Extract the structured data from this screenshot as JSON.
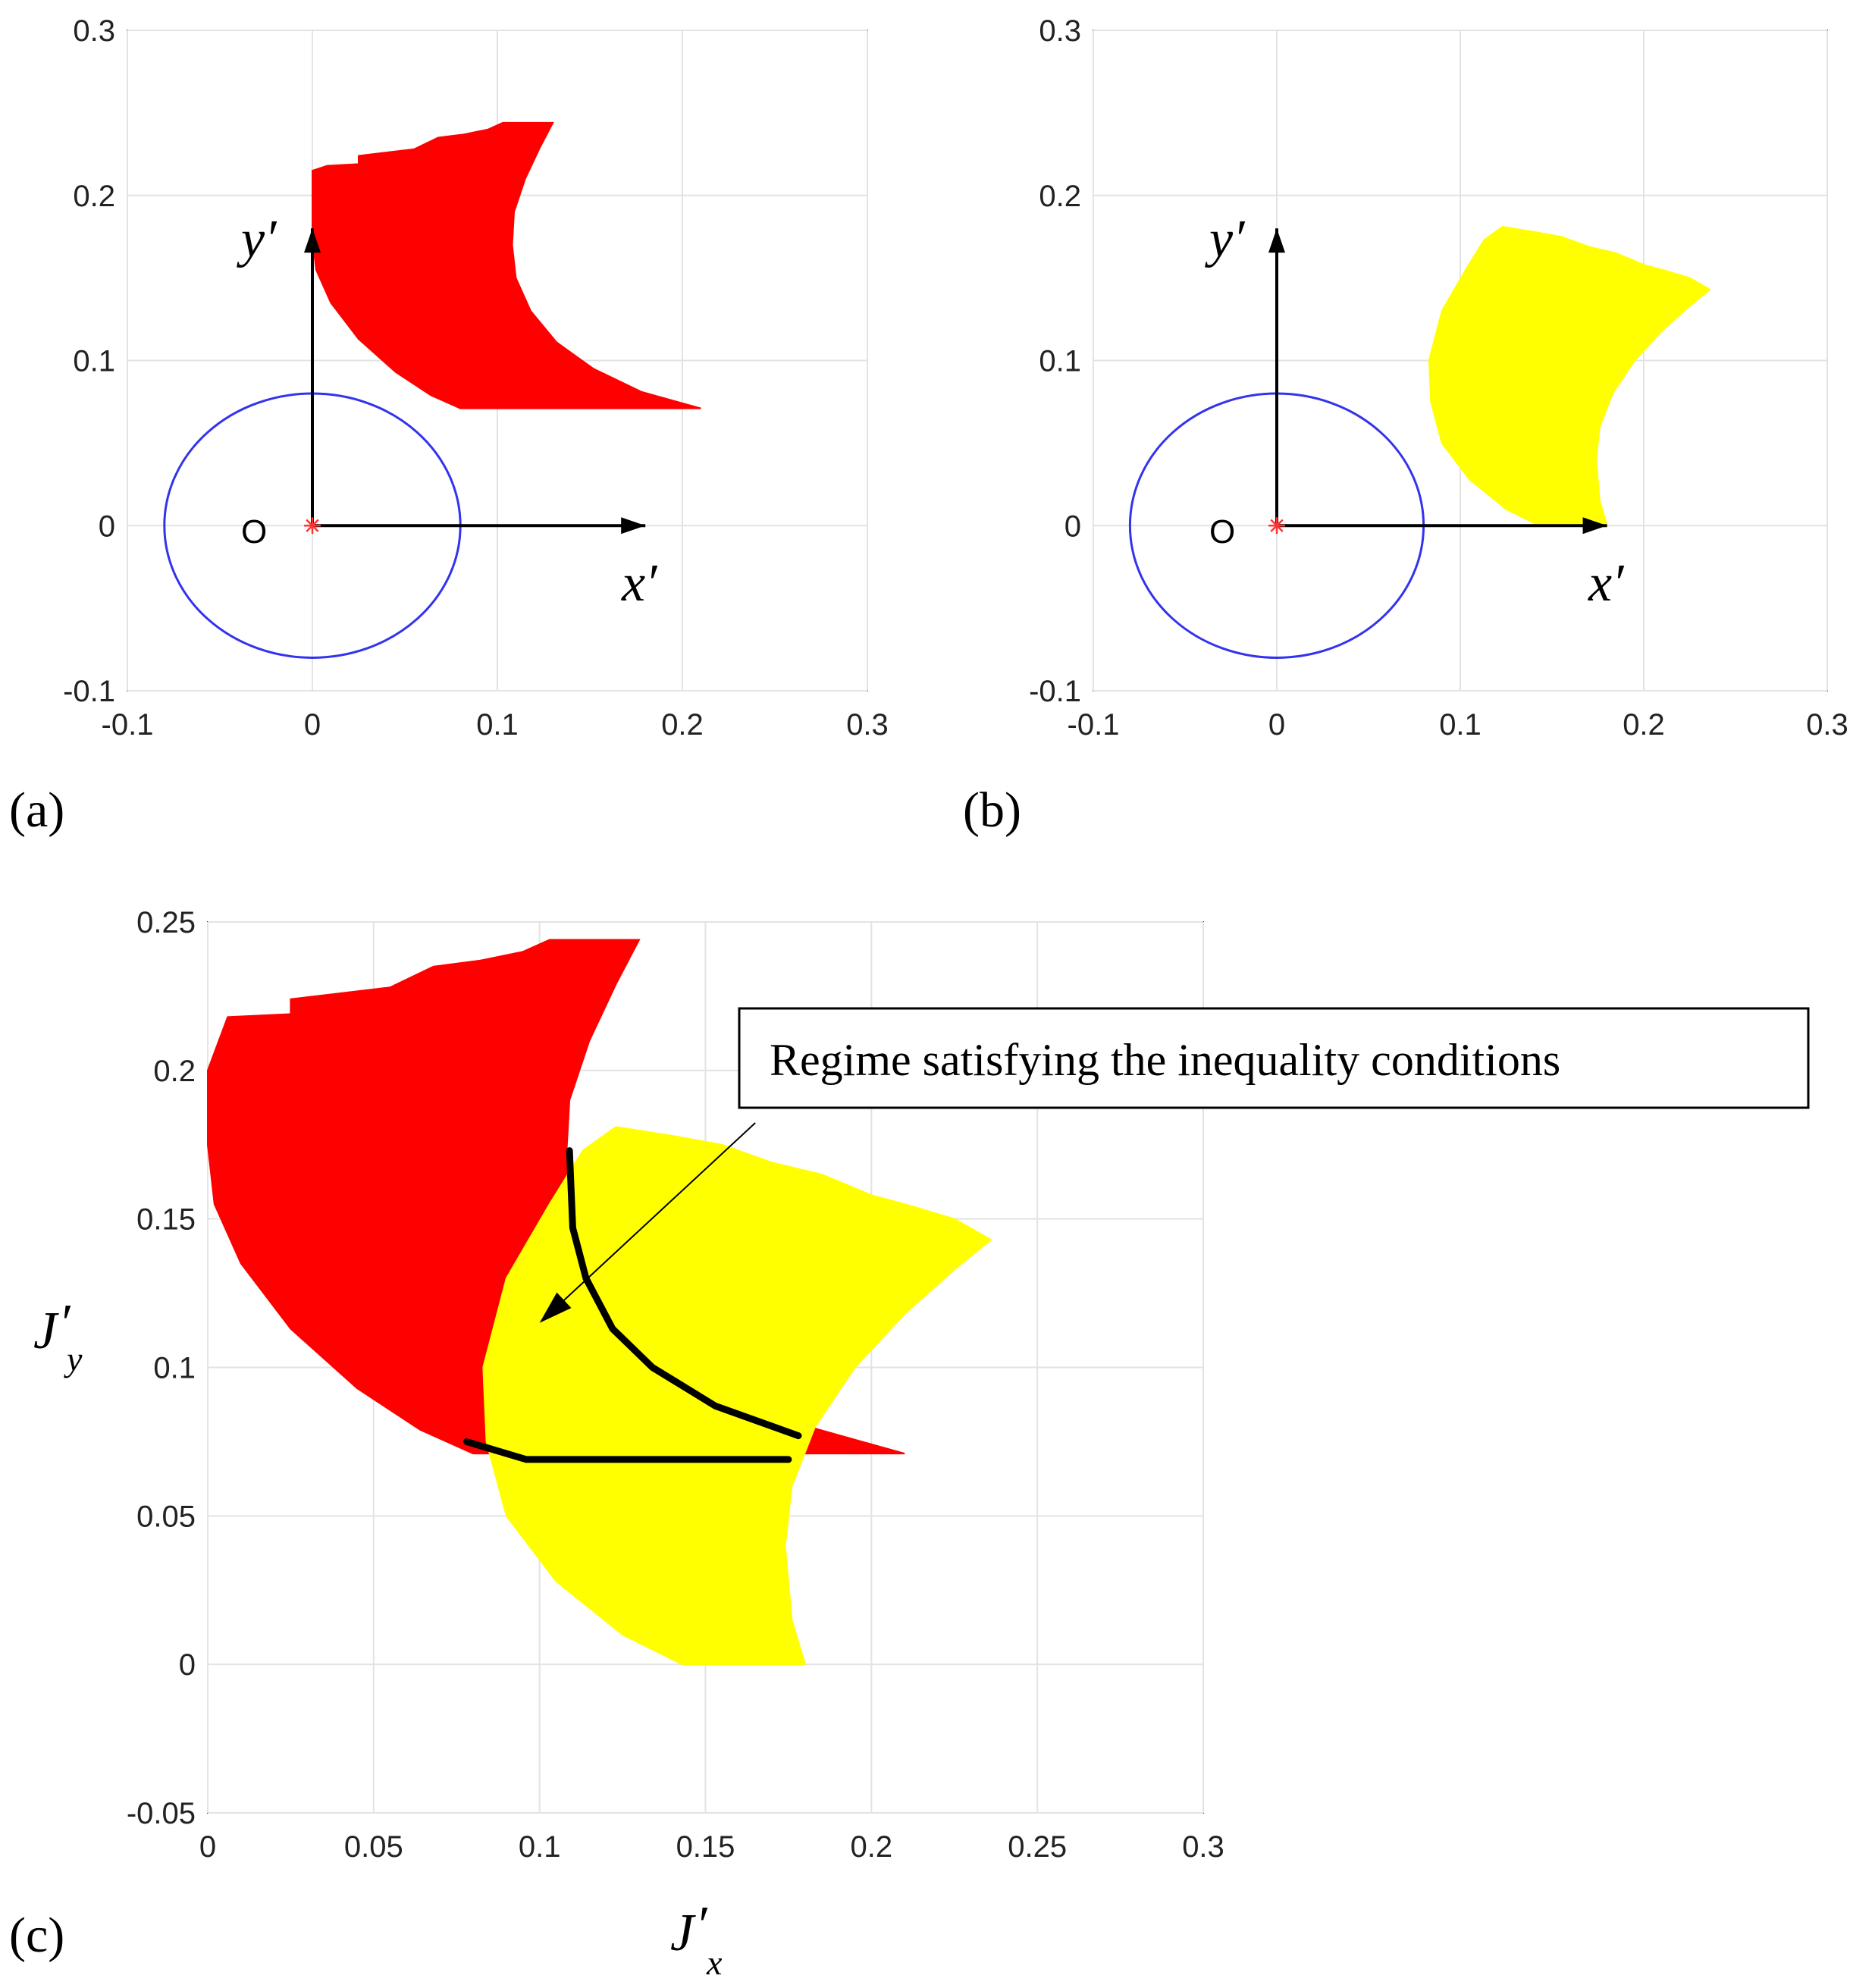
{
  "chart_data": [
    {
      "type": "area",
      "panel_label": "(a)",
      "xlim": [
        -0.1,
        0.3
      ],
      "ylim": [
        -0.1,
        0.3
      ],
      "xticks": [
        "-0.1",
        "0",
        "0.1",
        "0.2",
        "0.3"
      ],
      "yticks": [
        "-0.1",
        "0",
        "0.1",
        "0.2",
        "0.3"
      ],
      "grid": true,
      "x_axis_arrow_label": "x′",
      "y_axis_arrow_label": "y′",
      "origin_label": "O",
      "region_color": "#ff0000",
      "circle_color": "#3333ee",
      "circle": {
        "center": [
          0,
          0
        ],
        "radius": 0.08
      },
      "region": [
        [
          0.0,
          0.215
        ],
        [
          0.008,
          0.218
        ],
        [
          0.025,
          0.219
        ],
        [
          0.025,
          0.224
        ],
        [
          0.04,
          0.226
        ],
        [
          0.055,
          0.228
        ],
        [
          0.068,
          0.235
        ],
        [
          0.082,
          0.237
        ],
        [
          0.095,
          0.24
        ],
        [
          0.103,
          0.244
        ],
        [
          0.13,
          0.244
        ],
        [
          0.123,
          0.229
        ],
        [
          0.115,
          0.21
        ],
        [
          0.109,
          0.19
        ],
        [
          0.108,
          0.17
        ],
        [
          0.11,
          0.15
        ],
        [
          0.118,
          0.13
        ],
        [
          0.132,
          0.111
        ],
        [
          0.152,
          0.095
        ],
        [
          0.178,
          0.081
        ],
        [
          0.21,
          0.071
        ],
        [
          0.08,
          0.071
        ],
        [
          0.064,
          0.079
        ],
        [
          0.045,
          0.093
        ],
        [
          0.025,
          0.113
        ],
        [
          0.01,
          0.135
        ],
        [
          0.002,
          0.155
        ],
        [
          0.0,
          0.175
        ]
      ]
    },
    {
      "type": "area",
      "panel_label": "(b)",
      "xlim": [
        -0.1,
        0.3
      ],
      "ylim": [
        -0.1,
        0.3
      ],
      "xticks": [
        "-0.1",
        "0",
        "0.1",
        "0.2",
        "0.3"
      ],
      "yticks": [
        "-0.1",
        "0",
        "0.1",
        "0.2",
        "0.3"
      ],
      "grid": true,
      "x_axis_arrow_label": "x′",
      "y_axis_arrow_label": "y′",
      "origin_label": "O",
      "region_color": "#ffff00",
      "circle_color": "#3333ee",
      "circle": {
        "center": [
          0,
          0
        ],
        "radius": 0.08
      },
      "region": [
        [
          0.083,
          0.1
        ],
        [
          0.09,
          0.13
        ],
        [
          0.103,
          0.155
        ],
        [
          0.113,
          0.173
        ],
        [
          0.123,
          0.181
        ],
        [
          0.14,
          0.178
        ],
        [
          0.155,
          0.175
        ],
        [
          0.17,
          0.169
        ],
        [
          0.185,
          0.165
        ],
        [
          0.2,
          0.158
        ],
        [
          0.21,
          0.155
        ],
        [
          0.225,
          0.15
        ],
        [
          0.236,
          0.143
        ],
        [
          0.225,
          0.133
        ],
        [
          0.21,
          0.118
        ],
        [
          0.195,
          0.1
        ],
        [
          0.183,
          0.08
        ],
        [
          0.176,
          0.06
        ],
        [
          0.174,
          0.04
        ],
        [
          0.176,
          0.015
        ],
        [
          0.18,
          0.0
        ],
        [
          0.143,
          0.0
        ],
        [
          0.125,
          0.01
        ],
        [
          0.105,
          0.028
        ],
        [
          0.09,
          0.05
        ],
        [
          0.084,
          0.075
        ]
      ]
    },
    {
      "type": "area",
      "panel_label": "(c)",
      "xlabel": "J",
      "xlabel_sub": "x",
      "ylabel": "J",
      "ylabel_sub": "y",
      "xlim": [
        0,
        0.3
      ],
      "ylim": [
        -0.05,
        0.25
      ],
      "xticks": [
        "0",
        "0.05",
        "0.1",
        "0.15",
        "0.2",
        "0.25",
        "0.3"
      ],
      "yticks": [
        "-0.05",
        "0",
        "0.05",
        "0.1",
        "0.15",
        "0.2",
        "0.25"
      ],
      "grid": true,
      "series": [
        {
          "name": "red region",
          "color": "#ff0000",
          "points": [
            [
              0.0,
              0.2
            ],
            [
              0.006,
              0.218
            ],
            [
              0.025,
              0.219
            ],
            [
              0.025,
              0.224
            ],
            [
              0.04,
              0.226
            ],
            [
              0.055,
              0.228
            ],
            [
              0.068,
              0.235
            ],
            [
              0.082,
              0.237
            ],
            [
              0.095,
              0.24
            ],
            [
              0.103,
              0.244
            ],
            [
              0.13,
              0.244
            ],
            [
              0.123,
              0.229
            ],
            [
              0.115,
              0.21
            ],
            [
              0.109,
              0.19
            ],
            [
              0.108,
              0.17
            ],
            [
              0.11,
              0.15
            ],
            [
              0.118,
              0.13
            ],
            [
              0.132,
              0.111
            ],
            [
              0.152,
              0.095
            ],
            [
              0.178,
              0.081
            ],
            [
              0.21,
              0.071
            ],
            [
              0.08,
              0.071
            ],
            [
              0.064,
              0.079
            ],
            [
              0.045,
              0.093
            ],
            [
              0.025,
              0.113
            ],
            [
              0.01,
              0.135
            ],
            [
              0.002,
              0.155
            ],
            [
              0.0,
              0.175
            ]
          ]
        },
        {
          "name": "yellow region",
          "color": "#ffff00",
          "points": [
            [
              0.083,
              0.1
            ],
            [
              0.09,
              0.13
            ],
            [
              0.103,
              0.155
            ],
            [
              0.113,
              0.173
            ],
            [
              0.123,
              0.181
            ],
            [
              0.14,
              0.178
            ],
            [
              0.155,
              0.175
            ],
            [
              0.17,
              0.169
            ],
            [
              0.185,
              0.165
            ],
            [
              0.2,
              0.158
            ],
            [
              0.21,
              0.155
            ],
            [
              0.225,
              0.15
            ],
            [
              0.236,
              0.143
            ],
            [
              0.225,
              0.133
            ],
            [
              0.21,
              0.118
            ],
            [
              0.195,
              0.1
            ],
            [
              0.183,
              0.08
            ],
            [
              0.176,
              0.06
            ],
            [
              0.174,
              0.04
            ],
            [
              0.176,
              0.015
            ],
            [
              0.18,
              0.0
            ],
            [
              0.143,
              0.0
            ],
            [
              0.125,
              0.01
            ],
            [
              0.105,
              0.028
            ],
            [
              0.09,
              0.05
            ],
            [
              0.084,
              0.075
            ]
          ]
        },
        {
          "name": "boundary",
          "color": "#000000",
          "points": [
            [
              0.109,
              0.173
            ],
            [
              0.11,
              0.147
            ],
            [
              0.114,
              0.13
            ],
            [
              0.122,
              0.113
            ],
            [
              0.134,
              0.1
            ],
            [
              0.153,
              0.087
            ],
            [
              0.178,
              0.077
            ]
          ]
        },
        {
          "name": "boundary-bottom",
          "color": "#000000",
          "points": [
            [
              0.078,
              0.075
            ],
            [
              0.096,
              0.069
            ],
            [
              0.175,
              0.069
            ]
          ]
        }
      ],
      "annotation": {
        "text": "Regime satisfying the inequality conditions",
        "arrow_from": [
          0.165,
          0.19
        ],
        "arrow_to": [
          0.1,
          0.115
        ]
      }
    }
  ]
}
